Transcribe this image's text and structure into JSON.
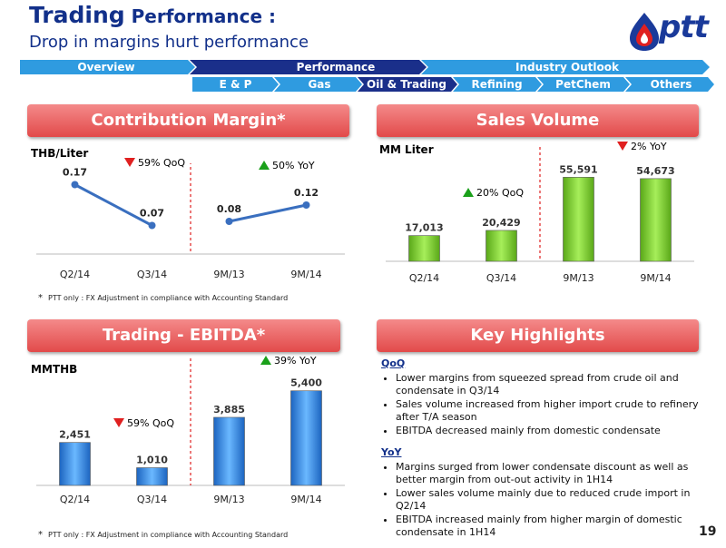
{
  "header": {
    "title_bold": "Trading",
    "title_rest": " Performance :",
    "subtitle": "Drop in margins hurt performance",
    "logo_text": "ptt"
  },
  "nav": {
    "top": [
      "Overview",
      "Performance",
      "Industry Outlook"
    ],
    "sub": [
      "E & P",
      "Gas",
      "Oil & Trading",
      "Refining",
      "PetChem",
      "Others"
    ],
    "colors": {
      "dark": "#1a2f8a",
      "light": "#2f9be0",
      "active": "#1a2f8a"
    }
  },
  "contribution_margin": {
    "title": "Contribution Margin*",
    "unit": "THB/Liter",
    "qoq": "59% QoQ",
    "yoy": "50% YoY",
    "footnote": "PTT only : FX Adjustment in compliance with Accounting Standard",
    "chart_data": {
      "type": "line",
      "categories": [
        "Q2/14",
        "Q3/14",
        "9M/13",
        "9M/14"
      ],
      "series": [
        {
          "values": [
            0.17,
            0.07,
            null,
            null
          ]
        },
        {
          "values": [
            null,
            null,
            0.08,
            0.12
          ]
        }
      ],
      "data_labels": [
        "0.17",
        "0.07",
        "0.08",
        "0.12"
      ],
      "ylim": [
        0,
        0.2
      ]
    }
  },
  "sales_volume": {
    "title": "Sales Volume",
    "unit": "MM Liter",
    "qoq": "20% QoQ",
    "yoy": "2% YoY",
    "chart_data": {
      "type": "bar",
      "categories": [
        "Q2/14",
        "Q3/14",
        "9M/13",
        "9M/14"
      ],
      "values": [
        17013,
        20429,
        55591,
        54673
      ],
      "data_labels": [
        "17,013",
        "20,429",
        "55,591",
        "54,673"
      ],
      "ylim": [
        0,
        60000
      ]
    }
  },
  "ebitda": {
    "title": "Trading - EBITDA*",
    "unit": "MMTHB",
    "qoq": "59% QoQ",
    "yoy": "39% YoY",
    "footnote": "PTT only : FX Adjustment in compliance with Accounting Standard",
    "chart_data": {
      "type": "bar",
      "categories": [
        "Q2/14",
        "Q3/14",
        "9M/13",
        "9M/14"
      ],
      "values": [
        2451,
        1010,
        3885,
        5400
      ],
      "data_labels": [
        "2,451",
        "1,010",
        "3,885",
        "5,400"
      ],
      "ylim": [
        0,
        5800
      ]
    }
  },
  "key_highlights": {
    "title": "Key Highlights",
    "qoq_head": "QoQ",
    "qoq_items": [
      "Lower margins from squeezed spread from crude oil and condensate in Q3/14",
      "Sales volume increased from higher import crude to refinery after T/A season",
      "EBITDA decreased mainly from domestic condensate"
    ],
    "yoy_head": "YoY",
    "yoy_items": [
      "Margins surged from lower condensate discount as well as better margin from out-out activity in 1H14",
      "Lower sales volume mainly due to reduced crude import in Q2/14",
      "EBITDA increased mainly from higher margin of domestic condensate in 1H14"
    ]
  },
  "page_number": "19",
  "colors": {
    "title_blue": "#12308a",
    "section_red": "#e24a4a",
    "bar_green": "#7ed321",
    "bar_blue": "#2a7fd4",
    "line_blue": "#3a6fbf",
    "down_red": "#e02020",
    "up_green": "#1aa01a"
  }
}
